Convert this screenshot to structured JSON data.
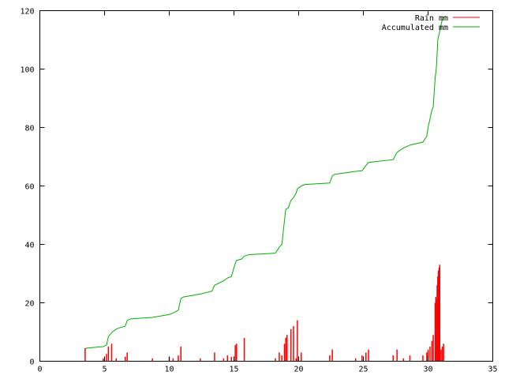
{
  "chart_data": {
    "type": "line",
    "title": "",
    "xlabel": "",
    "ylabel": "",
    "xlim": [
      0,
      35
    ],
    "ylim": [
      0,
      120
    ],
    "xticks": [
      0,
      5,
      10,
      15,
      20,
      25,
      30,
      35
    ],
    "yticks": [
      0,
      20,
      40,
      60,
      80,
      100,
      120
    ],
    "grid": false,
    "legend_position": "top-right",
    "series": [
      {
        "name": "Rain mm",
        "color": "#ff0000",
        "style": "impulses",
        "points": [
          [
            3.5,
            4.5
          ],
          [
            4.9,
            1.0
          ],
          [
            5.15,
            2.5
          ],
          [
            5.3,
            5.0
          ],
          [
            5.55,
            6.0
          ],
          [
            5.9,
            1.0
          ],
          [
            6.6,
            1.5
          ],
          [
            6.75,
            3.0
          ],
          [
            8.7,
            1.0
          ],
          [
            10.0,
            1.5
          ],
          [
            10.3,
            1.0
          ],
          [
            10.7,
            2.0
          ],
          [
            10.9,
            5.0
          ],
          [
            12.4,
            1.0
          ],
          [
            13.5,
            3.0
          ],
          [
            14.2,
            1.0
          ],
          [
            14.5,
            2.0
          ],
          [
            14.8,
            1.5
          ],
          [
            15.1,
            5.5
          ],
          [
            15.2,
            6.0
          ],
          [
            15.8,
            8.0
          ],
          [
            18.2,
            1.0
          ],
          [
            18.5,
            3.0
          ],
          [
            18.7,
            2.0
          ],
          [
            18.9,
            6.0
          ],
          [
            19.0,
            8.0
          ],
          [
            19.1,
            9.0
          ],
          [
            19.4,
            11.0
          ],
          [
            19.6,
            12.0
          ],
          [
            19.8,
            1.0
          ],
          [
            19.9,
            14.0
          ],
          [
            20.2,
            3.0
          ],
          [
            22.4,
            2.0
          ],
          [
            22.6,
            4.0
          ],
          [
            24.4,
            1.0
          ],
          [
            24.9,
            2.0
          ],
          [
            25.2,
            3.0
          ],
          [
            25.4,
            4.0
          ],
          [
            27.3,
            2.0
          ],
          [
            27.6,
            4.0
          ],
          [
            28.1,
            1.0
          ],
          [
            28.6,
            2.0
          ],
          [
            29.6,
            2.0
          ],
          [
            29.9,
            3.0
          ],
          [
            30.0,
            4.0
          ],
          [
            30.15,
            5.0
          ],
          [
            30.3,
            7.0
          ],
          [
            30.4,
            9.0
          ],
          [
            30.55,
            20.0
          ],
          [
            30.6,
            22.0
          ],
          [
            30.65,
            21.0
          ],
          [
            30.7,
            26.0
          ],
          [
            30.75,
            29.0
          ],
          [
            30.8,
            31.0
          ],
          [
            30.85,
            32.0
          ],
          [
            30.9,
            33.0
          ],
          [
            31.0,
            4.0
          ],
          [
            31.1,
            5.0
          ],
          [
            31.2,
            6.0
          ]
        ]
      },
      {
        "name": "Accumulated mm",
        "color": "#00b000",
        "style": "lines",
        "points": [
          [
            3.5,
            4.0
          ],
          [
            3.6,
            4.5
          ],
          [
            4.9,
            5.0
          ],
          [
            5.15,
            5.5
          ],
          [
            5.3,
            8.5
          ],
          [
            5.6,
            10.0
          ],
          [
            5.9,
            11.0
          ],
          [
            6.2,
            11.5
          ],
          [
            6.6,
            12.0
          ],
          [
            6.75,
            14.0
          ],
          [
            7.0,
            14.5
          ],
          [
            8.7,
            15.0
          ],
          [
            10.0,
            16.0
          ],
          [
            10.3,
            16.5
          ],
          [
            10.7,
            17.5
          ],
          [
            10.9,
            21.5
          ],
          [
            11.1,
            22.0
          ],
          [
            12.4,
            23.0
          ],
          [
            13.3,
            24.0
          ],
          [
            13.5,
            26.0
          ],
          [
            14.2,
            27.5
          ],
          [
            14.5,
            28.5
          ],
          [
            14.8,
            29.0
          ],
          [
            15.1,
            33.5
          ],
          [
            15.2,
            34.5
          ],
          [
            15.6,
            35.0
          ],
          [
            15.8,
            36.0
          ],
          [
            16.2,
            36.5
          ],
          [
            18.2,
            37.0
          ],
          [
            18.5,
            39.0
          ],
          [
            18.7,
            40.0
          ],
          [
            18.9,
            48.0
          ],
          [
            19.0,
            52.0
          ],
          [
            19.2,
            52.5
          ],
          [
            19.4,
            55.0
          ],
          [
            19.6,
            56.0
          ],
          [
            19.8,
            57.5
          ],
          [
            19.9,
            59.0
          ],
          [
            20.2,
            60.0
          ],
          [
            20.5,
            60.5
          ],
          [
            22.4,
            61.0
          ],
          [
            22.6,
            63.5
          ],
          [
            22.8,
            64.0
          ],
          [
            24.4,
            65.0
          ],
          [
            24.9,
            65.2
          ],
          [
            25.2,
            67.0
          ],
          [
            25.4,
            68.0
          ],
          [
            25.7,
            68.2
          ],
          [
            27.3,
            69.0
          ],
          [
            27.6,
            71.5
          ],
          [
            28.1,
            73.0
          ],
          [
            28.6,
            74.0
          ],
          [
            29.6,
            75.0
          ],
          [
            29.9,
            77.0
          ],
          [
            30.0,
            80.0
          ],
          [
            30.15,
            83.0
          ],
          [
            30.3,
            86.0
          ],
          [
            30.4,
            87.0
          ],
          [
            30.55,
            97.0
          ],
          [
            30.6,
            99.0
          ],
          [
            30.65,
            101.0
          ],
          [
            30.7,
            105.0
          ],
          [
            30.75,
            110.0
          ],
          [
            30.85,
            112.0
          ],
          [
            31.0,
            115.0
          ],
          [
            31.1,
            117.0
          ],
          [
            31.2,
            118.0
          ]
        ]
      }
    ]
  }
}
